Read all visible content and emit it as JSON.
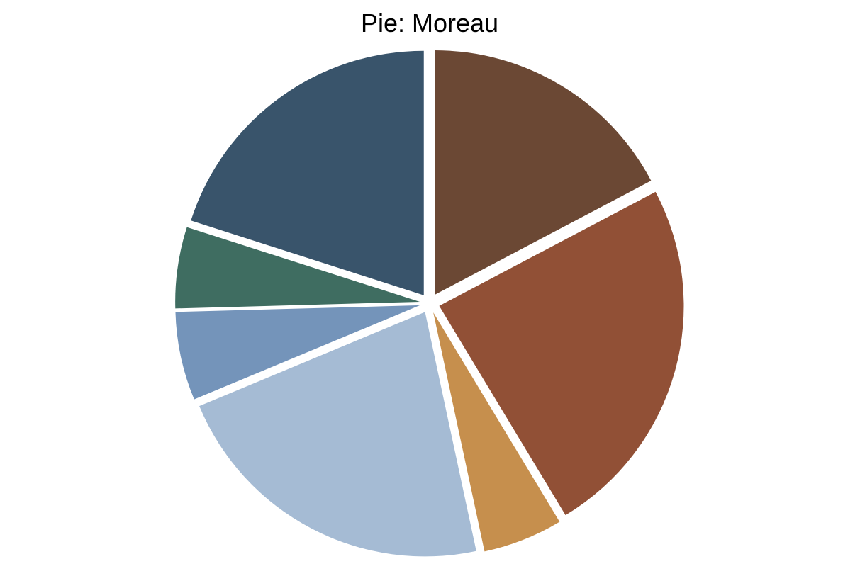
{
  "chart_data": {
    "type": "pie",
    "title": "Pie: Moreau",
    "start_angle_deg": 90,
    "direction": "clockwise",
    "slices": [
      {
        "value": 18.0,
        "color": "#6b4834"
      },
      {
        "value": 25.1,
        "color": "#915036"
      },
      {
        "value": 5.5,
        "color": "#c68f4d"
      },
      {
        "value": 23.0,
        "color": "#a5bbd4"
      },
      {
        "value": 6.1,
        "color": "#7494ba"
      },
      {
        "value": 5.6,
        "color": "#3f6d61"
      },
      {
        "value": 20.9,
        "color": "#39546b"
      }
    ]
  }
}
